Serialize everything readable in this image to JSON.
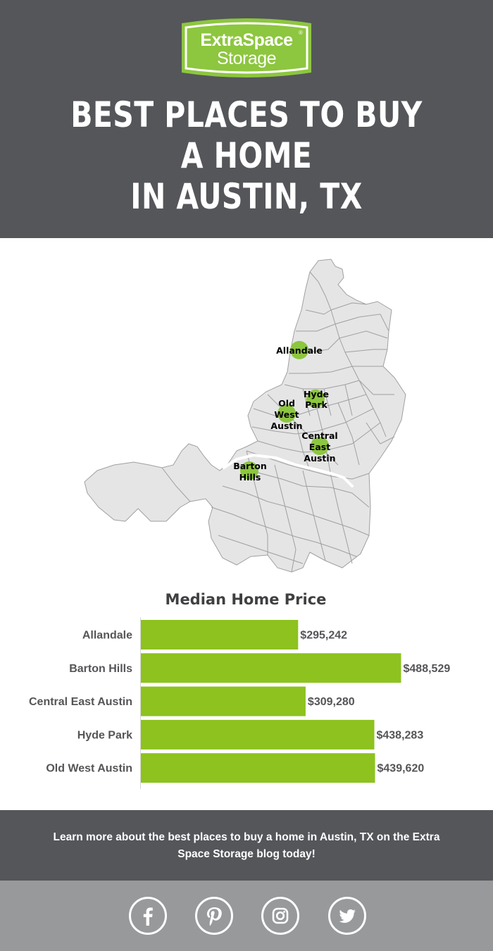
{
  "brand": {
    "line1": "ExtraSpace",
    "line2": "Storage",
    "registered": "®",
    "logo_color": "#8dc63f"
  },
  "title_lines": [
    "BEST PLACES TO BUY",
    "A HOME",
    "IN AUSTIN, TX"
  ],
  "map": {
    "labels": [
      {
        "lines": [
          "Allandale"
        ]
      },
      {
        "lines": [
          "Hyde",
          "Park"
        ]
      },
      {
        "lines": [
          "Old",
          "West",
          "Austin"
        ]
      },
      {
        "lines": [
          "Central",
          "East",
          "Austin"
        ]
      },
      {
        "lines": [
          "Barton",
          "Hills"
        ]
      }
    ],
    "marker_color": "#8dc63f",
    "region_color": "#e5e5e6"
  },
  "chart_data": {
    "type": "bar",
    "orientation": "horizontal",
    "title": "Median Home Price",
    "categories": [
      "Allandale",
      "Barton Hills",
      "Central East Austin",
      "Hyde Park",
      "Old West Austin"
    ],
    "values": [
      295242,
      488529,
      309280,
      438283,
      439620
    ],
    "value_labels": [
      "$295,242",
      "$488,529",
      "$309,280",
      "$438,283",
      "$439,620"
    ],
    "xlim": [
      0,
      488529
    ],
    "bar_color": "#8dc21f",
    "grid": false
  },
  "cta": {
    "text": "Learn more about the best places to buy a home in Austin, TX on the Extra Space Storage blog today!"
  },
  "social": [
    {
      "name": "facebook-icon"
    },
    {
      "name": "pinterest-icon"
    },
    {
      "name": "instagram-icon"
    },
    {
      "name": "twitter-icon"
    }
  ]
}
